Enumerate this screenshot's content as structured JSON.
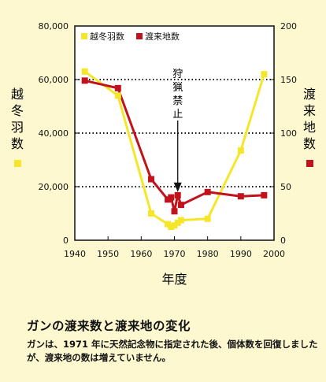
{
  "chart_data": {
    "type": "line",
    "x_axis": {
      "label": "年度",
      "range": [
        1940,
        2000
      ],
      "ticks": [
        1940,
        1950,
        1960,
        1970,
        1980,
        1990,
        2000
      ]
    },
    "y_left": {
      "label": "越冬羽数",
      "range": [
        0,
        80000
      ],
      "ticks": [
        "0",
        "20,000",
        "40,000",
        "60,000",
        "80,000"
      ],
      "tick_values": [
        0,
        20000,
        40000,
        60000,
        80000
      ]
    },
    "y_right": {
      "label": "渡来地数",
      "range": [
        0,
        200
      ],
      "ticks": [
        "0",
        "50",
        "100",
        "150",
        "200"
      ],
      "tick_values": [
        0,
        50,
        100,
        150,
        200
      ]
    },
    "gridlines_y": [
      20000,
      40000,
      60000
    ],
    "legend": {
      "placement": "top-left",
      "entries": [
        "越冬羽数",
        "渡来地数"
      ]
    },
    "series": [
      {
        "name": "越冬羽数",
        "axis": "left",
        "color": "#f5e62a",
        "marker": "square",
        "x": [
          1943,
          1953,
          1963,
          1968,
          1969,
          1970,
          1971,
          1972,
          1980,
          1990,
          1997
        ],
        "y": [
          63000,
          54000,
          10000,
          6000,
          5000,
          5500,
          6500,
          7500,
          8000,
          33500,
          62000
        ]
      },
      {
        "name": "渡来地数",
        "axis": "right",
        "color": "#c0131c",
        "marker": "square",
        "x": [
          1943,
          1953,
          1963,
          1968,
          1969,
          1970,
          1971,
          1972,
          1980,
          1990,
          1997
        ],
        "y": [
          149,
          142,
          57,
          38,
          40,
          27,
          42,
          33,
          45,
          41,
          42
        ]
      }
    ],
    "annotations": [
      {
        "text": "狩猟禁止",
        "x": 1971,
        "arrow_to_y": 18000
      }
    ]
  },
  "caption": {
    "title": "ガンの渡来数と渡来地の変化",
    "body": "ガンは、1971 年に天然記念物に指定された後、個体数を回復しましたが、渡来地の数は増えていません。"
  }
}
